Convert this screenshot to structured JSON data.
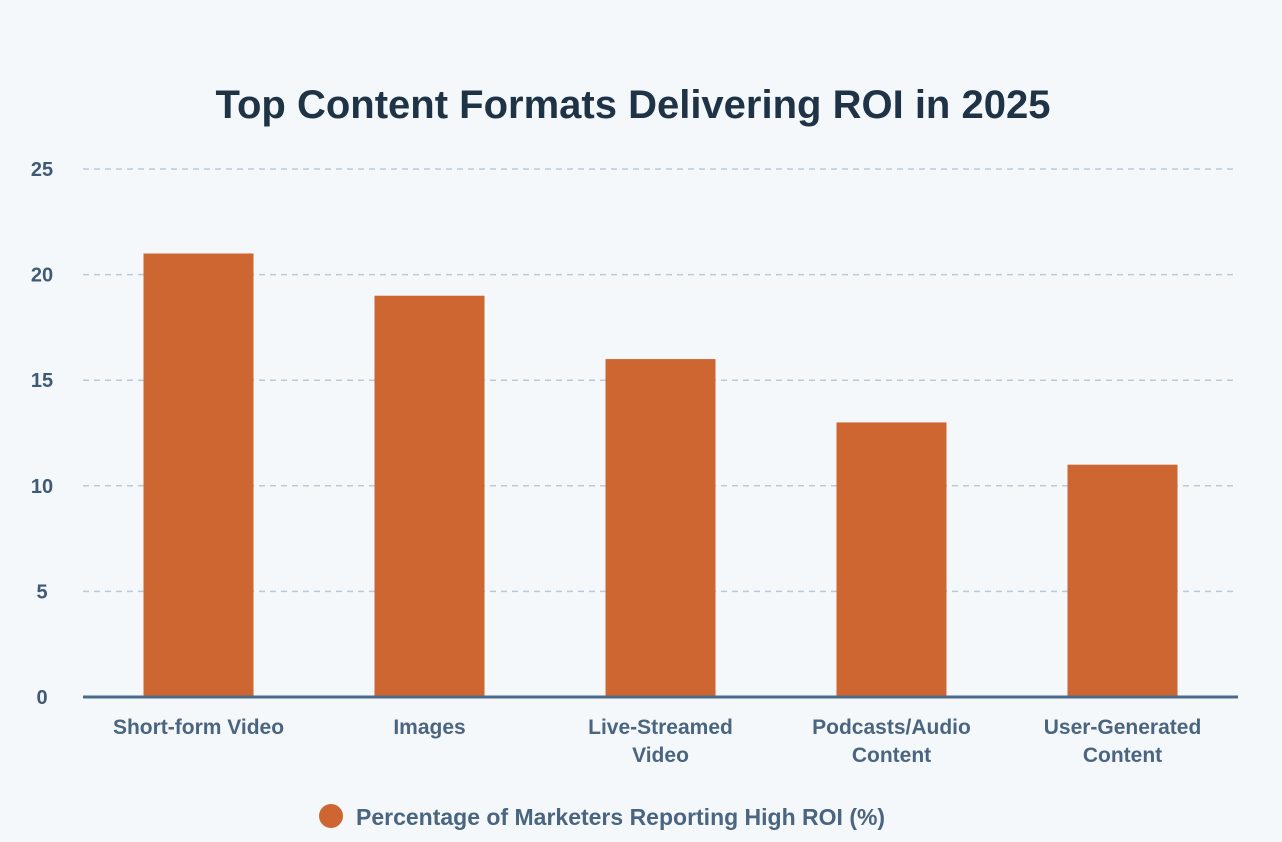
{
  "chart_data": {
    "type": "bar",
    "title": "Top Content Formats Delivering ROI in 2025",
    "categories": [
      [
        "Short-form Video"
      ],
      [
        "Images"
      ],
      [
        "Live-Streamed",
        "Video"
      ],
      [
        "Podcasts/Audio",
        "Content"
      ],
      [
        "User-Generated",
        "Content"
      ]
    ],
    "series": [
      {
        "name": "Percentage of Marketers Reporting High ROI (%)",
        "values": [
          21,
          19,
          16,
          13,
          11
        ],
        "color": "#cd6630"
      }
    ],
    "ylim": [
      0,
      25
    ],
    "yticks": [
      0,
      5,
      10,
      15,
      20,
      25
    ],
    "grid": true,
    "legend_position": "bottom",
    "xlabel": "",
    "ylabel": ""
  }
}
